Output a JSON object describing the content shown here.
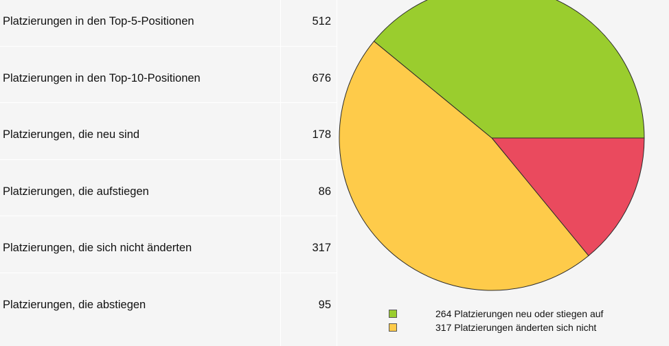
{
  "stats": [
    {
      "label": "Platzierungen in den Top-5-Positionen",
      "value": "512"
    },
    {
      "label": "Platzierungen in den Top-10-Positionen",
      "value": "676"
    },
    {
      "label": "Platzierungen, die neu sind",
      "value": "178"
    },
    {
      "label": "Platzierungen, die aufstiegen",
      "value": "86"
    },
    {
      "label": "Platzierungen, die sich nicht änderten",
      "value": "317"
    },
    {
      "label": "Platzierungen, die abstiegen",
      "value": "95"
    }
  ],
  "chart_data": {
    "type": "pie",
    "title": "",
    "slices": [
      {
        "label": "264 Platzierungen neu oder stiegen auf",
        "value": 264,
        "color": "#9acd2e"
      },
      {
        "label": "317 Platzierungen änderten sich nicht",
        "value": 317,
        "color": "#fecb4a"
      },
      {
        "label": "",
        "value": 95,
        "color": "#ea4a5e"
      }
    ],
    "legend_placement": "bottom"
  }
}
